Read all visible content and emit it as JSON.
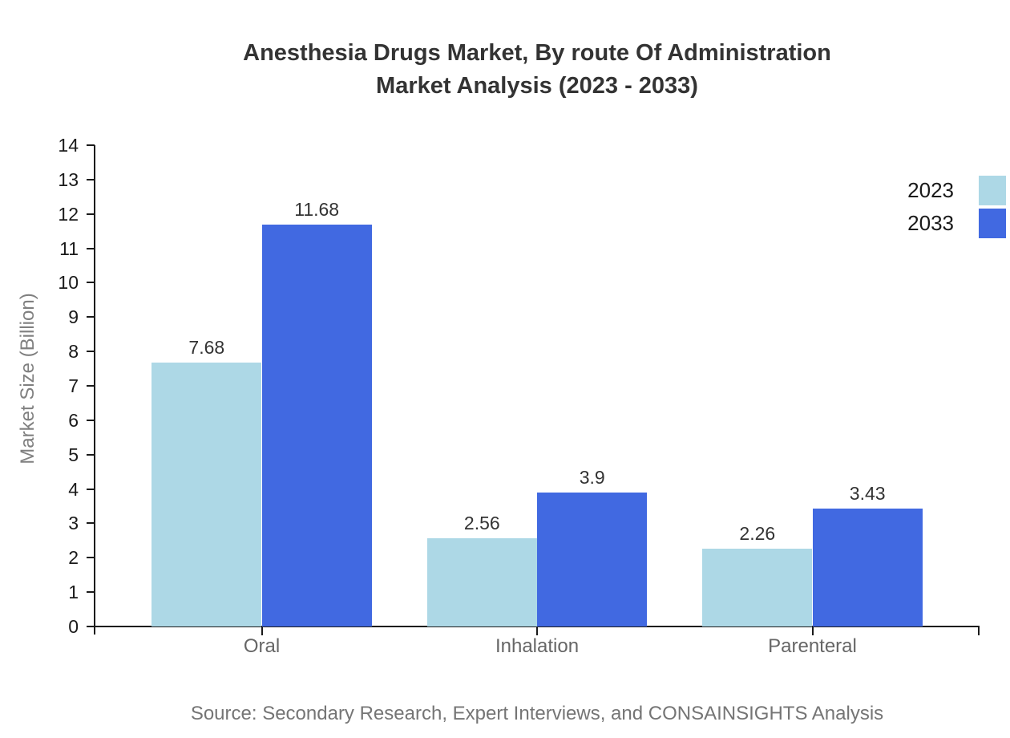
{
  "chart_data": {
    "type": "bar",
    "title_line1": "Anesthesia Drugs Market, By route Of Administration",
    "title_line2": "Market Analysis (2023 - 2033)",
    "ylabel": "Market Size (Billion)",
    "ylim": [
      0,
      14
    ],
    "yticks": [
      0,
      1,
      2,
      3,
      4,
      5,
      6,
      7,
      8,
      9,
      10,
      11,
      12,
      13,
      14
    ],
    "grid": false,
    "legend_position": "top-right",
    "categories": [
      "Oral",
      "Inhalation",
      "Parenteral"
    ],
    "series": [
      {
        "name": "2023",
        "color": "#ADD8E6",
        "values": [
          7.68,
          2.56,
          2.26
        ],
        "value_labels": [
          "7.68",
          "2.56",
          "2.26"
        ]
      },
      {
        "name": "2033",
        "color": "#4169E1",
        "values": [
          11.68,
          3.9,
          3.43
        ],
        "value_labels": [
          "11.68",
          "3.9",
          "3.43"
        ]
      }
    ],
    "source": "Source: Secondary Research, Expert Interviews, and CONSAINSIGHTS Analysis"
  },
  "colors": {
    "background": "#ffffff",
    "title_text": "#333333",
    "axis_line": "#1a1a1a",
    "tick_label": "#1a1a1a",
    "category_label": "#666666",
    "axis_title": "#808080",
    "value_label": "#333333",
    "source_text": "#757575",
    "series_2023": "#ADD8E6",
    "series_2033": "#4169E1"
  }
}
